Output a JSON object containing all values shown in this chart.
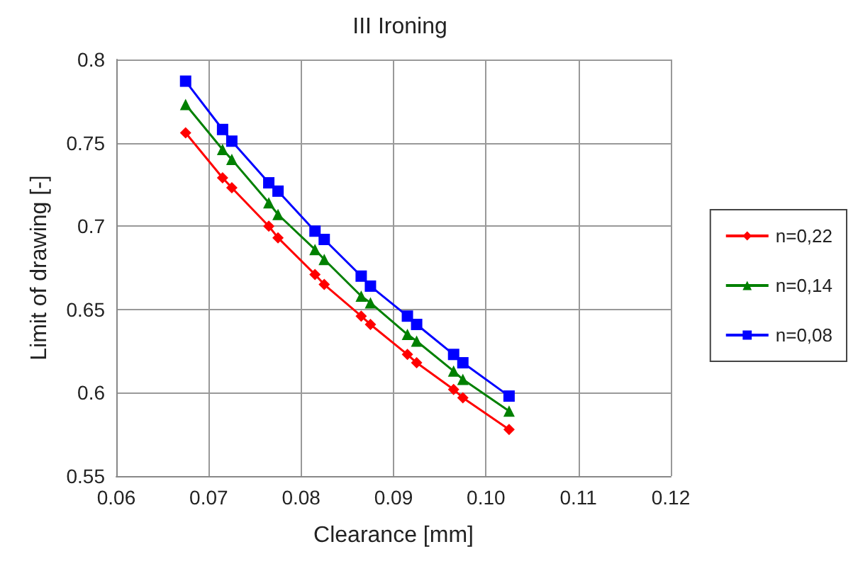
{
  "chart_data": {
    "type": "line",
    "title": "III Ironing",
    "xlabel": "Clearance [mm]",
    "ylabel": "Limit of drawing [-]",
    "x": [
      0.0675,
      0.0715,
      0.0725,
      0.0765,
      0.0775,
      0.0815,
      0.0825,
      0.0865,
      0.0875,
      0.0915,
      0.0925,
      0.0965,
      0.0975,
      0.1025
    ],
    "series": [
      {
        "name": "n=0,22",
        "color": "#ff0000",
        "marker": "diamond",
        "values": [
          0.756,
          0.729,
          0.723,
          0.7,
          0.693,
          0.671,
          0.665,
          0.646,
          0.641,
          0.623,
          0.618,
          0.602,
          0.597,
          0.578
        ]
      },
      {
        "name": "n=0,14",
        "color": "#008000",
        "marker": "triangle",
        "values": [
          0.773,
          0.746,
          0.74,
          0.714,
          0.707,
          0.686,
          0.68,
          0.658,
          0.654,
          0.635,
          0.631,
          0.613,
          0.608,
          0.589
        ]
      },
      {
        "name": "n=0,08",
        "color": "#0000ff",
        "marker": "square",
        "values": [
          0.787,
          0.758,
          0.751,
          0.726,
          0.721,
          0.697,
          0.692,
          0.67,
          0.664,
          0.646,
          0.641,
          0.623,
          0.618,
          0.598
        ]
      }
    ],
    "xlim": [
      0.06,
      0.12
    ],
    "xticks": [
      {
        "value": 0.06,
        "label": "0.06"
      },
      {
        "value": 0.07,
        "label": "0.07"
      },
      {
        "value": 0.08,
        "label": "0.08"
      },
      {
        "value": 0.09,
        "label": "0.09"
      },
      {
        "value": 0.1,
        "label": "0.10"
      },
      {
        "value": 0.11,
        "label": "0.11"
      },
      {
        "value": 0.12,
        "label": "0.12"
      }
    ],
    "ylim": [
      0.55,
      0.8
    ],
    "yticks": [
      0.55,
      0.6,
      0.65,
      0.7,
      0.75,
      0.8
    ],
    "grid": true,
    "legend": "right",
    "line_style": "solid"
  }
}
